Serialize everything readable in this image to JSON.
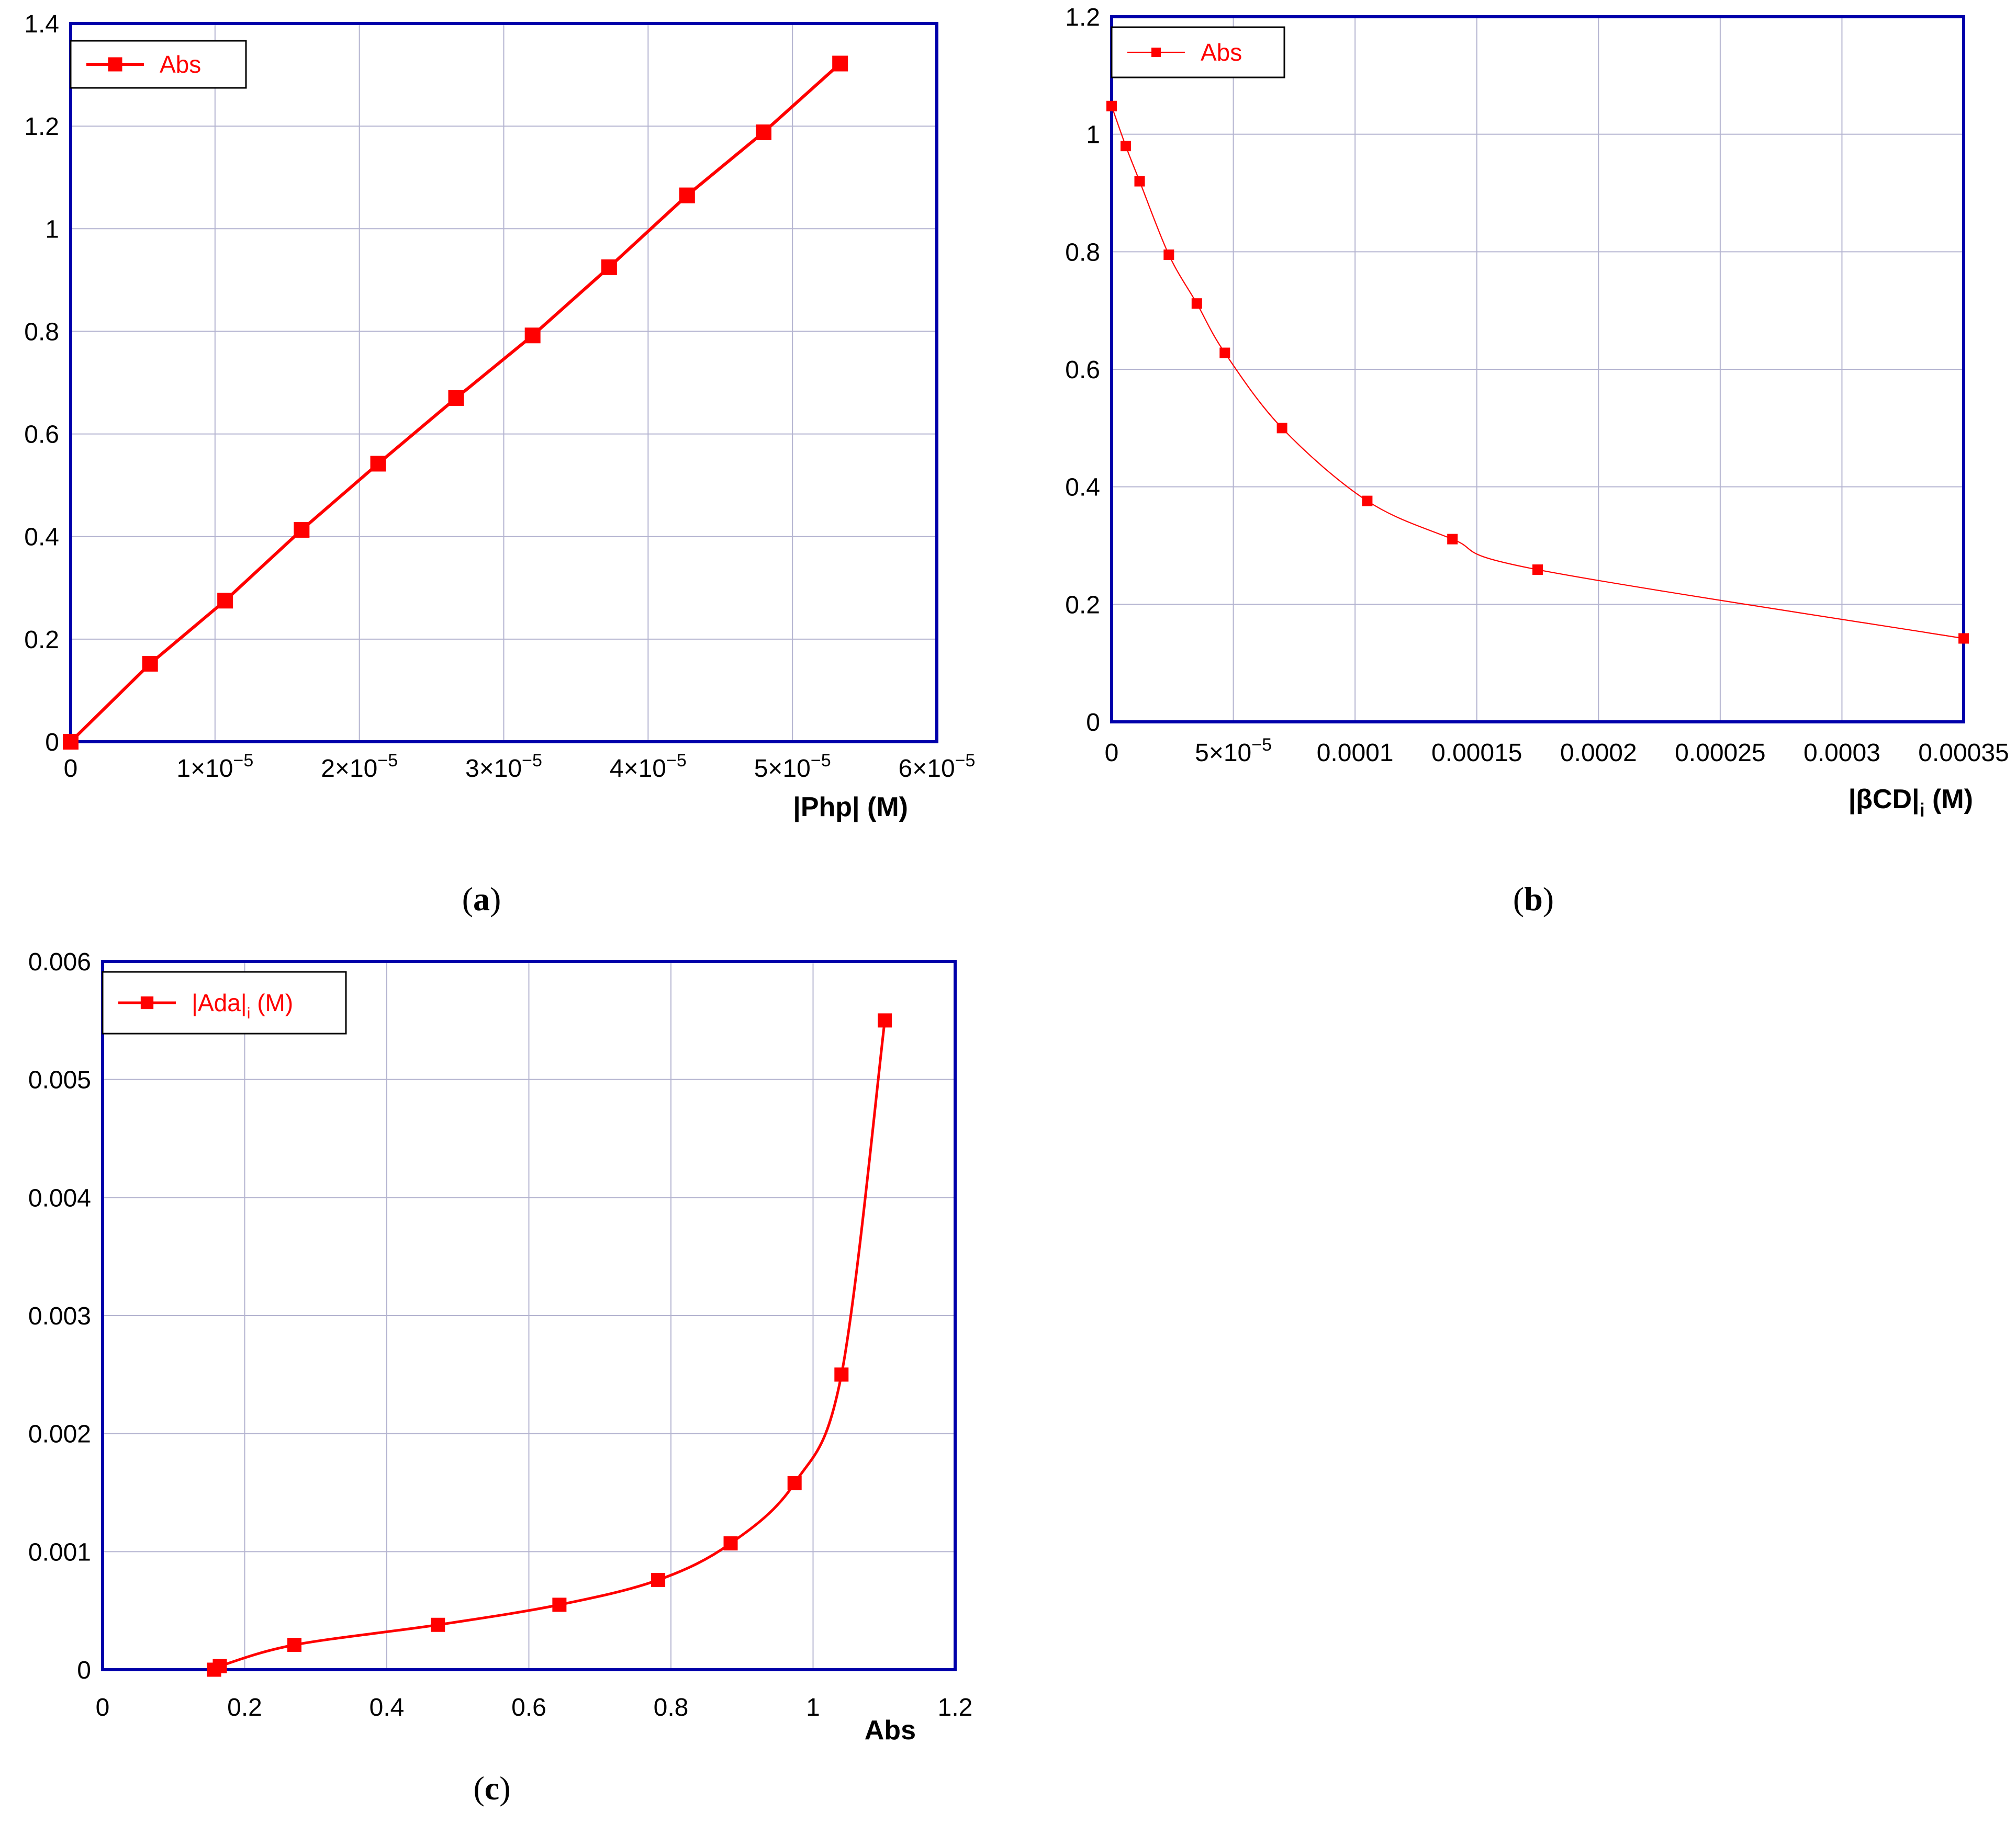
{
  "colors": {
    "series": "#ff0000",
    "frame": "#0000aa",
    "grid": "#b4b4d0",
    "text": "#000000"
  },
  "chart_data": [
    {
      "id": "a",
      "type": "line",
      "panel_label": "a",
      "xlabel": "|Php| (M)",
      "ylabel": "",
      "xlim": [
        0,
        6e-05
      ],
      "ylim": [
        0,
        1.4
      ],
      "grid": true,
      "legend_position": "top-left",
      "x_ticks": [
        {
          "value": 0,
          "mantissa": "0",
          "exponent": ""
        },
        {
          "value": 1e-05,
          "mantissa": "1×10",
          "exponent": "−5"
        },
        {
          "value": 2e-05,
          "mantissa": "2×10",
          "exponent": "−5"
        },
        {
          "value": 3e-05,
          "mantissa": "3×10",
          "exponent": "−5"
        },
        {
          "value": 4e-05,
          "mantissa": "4×10",
          "exponent": "−5"
        },
        {
          "value": 5e-05,
          "mantissa": "5×10",
          "exponent": "−5"
        },
        {
          "value": 6e-05,
          "mantissa": "6×10",
          "exponent": "−5"
        }
      ],
      "y_ticks": [
        {
          "value": 0,
          "label": "0"
        },
        {
          "value": 0.2,
          "label": "0.2"
        },
        {
          "value": 0.4,
          "label": "0.4"
        },
        {
          "value": 0.6,
          "label": "0.6"
        },
        {
          "value": 0.8,
          "label": "0.8"
        },
        {
          "value": 1.0,
          "label": "1"
        },
        {
          "value": 1.2,
          "label": "1.2"
        },
        {
          "value": 1.4,
          "label": "1.4"
        }
      ],
      "series": [
        {
          "name": "Abs",
          "style": "line-marker",
          "x": [
            0,
            5.5e-06,
            1.07e-05,
            1.6e-05,
            2.13e-05,
            2.67e-05,
            3.2e-05,
            3.73e-05,
            4.27e-05,
            4.8e-05,
            5.33e-05
          ],
          "y": [
            0,
            0.152,
            0.275,
            0.413,
            0.542,
            0.67,
            0.792,
            0.925,
            1.065,
            1.188,
            1.322
          ]
        }
      ]
    },
    {
      "id": "b",
      "type": "scatter",
      "panel_label": "b",
      "xlabel": "|βCD|",
      "xlabel_sub": "i",
      "xlabel_suffix": " (M)",
      "ylabel": "",
      "xlim": [
        0,
        0.00035
      ],
      "ylim": [
        0,
        1.2
      ],
      "grid": true,
      "legend_position": "top-left",
      "x_ticks": [
        {
          "value": 0,
          "mantissa": "0",
          "exponent": ""
        },
        {
          "value": 5e-05,
          "mantissa": "5×10",
          "exponent": "−5"
        },
        {
          "value": 0.0001,
          "mantissa": "0.0001",
          "exponent": ""
        },
        {
          "value": 0.00015,
          "mantissa": "0.00015",
          "exponent": ""
        },
        {
          "value": 0.0002,
          "mantissa": "0.0002",
          "exponent": ""
        },
        {
          "value": 0.00025,
          "mantissa": "0.00025",
          "exponent": ""
        },
        {
          "value": 0.0003,
          "mantissa": "0.0003",
          "exponent": ""
        },
        {
          "value": 0.00035,
          "mantissa": "0.00035",
          "exponent": ""
        }
      ],
      "y_ticks": [
        {
          "value": 0,
          "label": "0"
        },
        {
          "value": 0.2,
          "label": "0.2"
        },
        {
          "value": 0.4,
          "label": "0.4"
        },
        {
          "value": 0.6,
          "label": "0.6"
        },
        {
          "value": 0.8,
          "label": "0.8"
        },
        {
          "value": 1.0,
          "label": "1"
        },
        {
          "value": 1.2,
          "label": "1.2"
        }
      ],
      "series": [
        {
          "name": "Abs",
          "style": "marker-fit",
          "x": [
            0,
            5.8e-06,
            1.15e-05,
            2.35e-05,
            3.5e-05,
            4.65e-05,
            7e-05,
            0.000105,
            0.00014,
            0.000175,
            0.00035
          ],
          "y": [
            1.048,
            0.98,
            0.92,
            0.795,
            0.712,
            0.628,
            0.5,
            0.376,
            0.311,
            0.259,
            0.142
          ]
        }
      ]
    },
    {
      "id": "c",
      "type": "line",
      "panel_label": "c",
      "xlabel": "Abs",
      "ylabel": "",
      "xlim": [
        0,
        1.2
      ],
      "ylim": [
        0,
        0.006
      ],
      "grid": true,
      "legend_position": "top-left",
      "x_ticks": [
        {
          "value": 0,
          "mantissa": "0",
          "exponent": ""
        },
        {
          "value": 0.2,
          "mantissa": "0.2",
          "exponent": ""
        },
        {
          "value": 0.4,
          "mantissa": "0.4",
          "exponent": ""
        },
        {
          "value": 0.6,
          "mantissa": "0.6",
          "exponent": ""
        },
        {
          "value": 0.8,
          "mantissa": "0.8",
          "exponent": ""
        },
        {
          "value": 1.0,
          "mantissa": "1",
          "exponent": ""
        },
        {
          "value": 1.2,
          "mantissa": "1.2",
          "exponent": ""
        }
      ],
      "y_ticks": [
        {
          "value": 0,
          "label": "0"
        },
        {
          "value": 0.001,
          "label": "0.001"
        },
        {
          "value": 0.002,
          "label": "0.002"
        },
        {
          "value": 0.003,
          "label": "0.003"
        },
        {
          "value": 0.004,
          "label": "0.004"
        },
        {
          "value": 0.005,
          "label": "0.005"
        },
        {
          "value": 0.006,
          "label": "0.006"
        }
      ],
      "series": [
        {
          "name": "|Ada|",
          "name_sub": "i",
          "name_suffix": " (M)",
          "style": "line-marker",
          "x": [
            0.157,
            0.165,
            0.27,
            0.472,
            0.643,
            0.782,
            0.884,
            0.974,
            1.04,
            1.101
          ],
          "y": [
            0.0,
            3e-05,
            0.00021,
            0.00038,
            0.00055,
            0.00076,
            0.00107,
            0.00158,
            0.0025,
            0.0055
          ]
        }
      ]
    }
  ]
}
